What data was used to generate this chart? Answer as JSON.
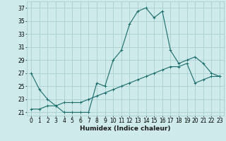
{
  "xlabel": "Humidex (Indice chaleur)",
  "bg_color": "#ceeaea",
  "grid_color": "#aacfcf",
  "line_color": "#1a6b6b",
  "x_values_line1": [
    0,
    1,
    2,
    3,
    4,
    5,
    6,
    7,
    8,
    9,
    10,
    11,
    12,
    13,
    14,
    15,
    16,
    17,
    18,
    19,
    20,
    21,
    22,
    23
  ],
  "y_values_line1": [
    27,
    24.5,
    23,
    22,
    21,
    21,
    21,
    21,
    25.5,
    25,
    29,
    30.5,
    34.5,
    36.5,
    37,
    35.5,
    36.5,
    30.5,
    28.5,
    29,
    29.5,
    28.5,
    27,
    26.5
  ],
  "x_values_line2": [
    0,
    1,
    2,
    3,
    4,
    5,
    6,
    7,
    8,
    9,
    10,
    11,
    12,
    13,
    14,
    15,
    16,
    17,
    18,
    19,
    20,
    21,
    22,
    23
  ],
  "y_values_line2": [
    21.5,
    21.5,
    22,
    22,
    22.5,
    22.5,
    22.5,
    23,
    23.5,
    24,
    24.5,
    25,
    25.5,
    26,
    26.5,
    27,
    27.5,
    28,
    28,
    28.5,
    25.5,
    26,
    26.5,
    26.5
  ],
  "ylim": [
    20.5,
    38
  ],
  "xlim": [
    -0.5,
    23.5
  ],
  "yticks": [
    21,
    23,
    25,
    27,
    29,
    31,
    33,
    35,
    37
  ],
  "xticks": [
    0,
    1,
    2,
    3,
    4,
    5,
    6,
    7,
    8,
    9,
    10,
    11,
    12,
    13,
    14,
    15,
    16,
    17,
    18,
    19,
    20,
    21,
    22,
    23
  ],
  "tick_fontsize": 5.5,
  "xlabel_fontsize": 6.5,
  "fig_width": 3.2,
  "fig_height": 2.0,
  "dpi": 100
}
